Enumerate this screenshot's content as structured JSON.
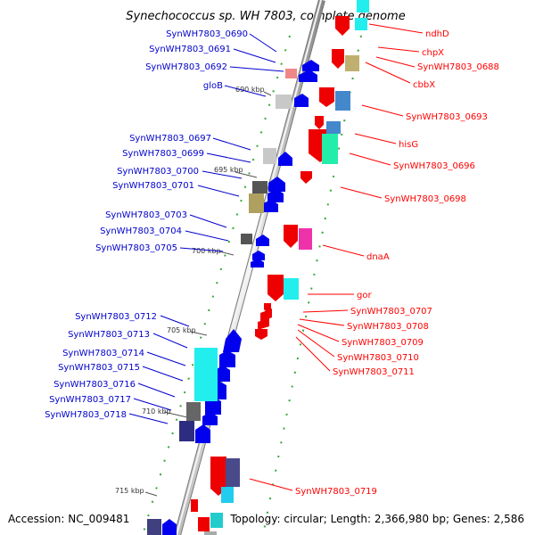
{
  "title": "Synechococcus sp. WH 7803, complete genome",
  "footer": {
    "accession": "Accession: NC_009481",
    "topology": "Topology: circular; Length: 2,366,980 bp; Genes: 2,586"
  },
  "colors": {
    "forward_label": "#ff0000",
    "reverse_label": "#0000cc",
    "backbone": "#888888",
    "reverse_gene": "#0000ee",
    "forward_gene": "#ee0000"
  },
  "ticks": [
    "690 kbp",
    "695 kbp",
    "700 kbp",
    "705 kbp",
    "710 kbp",
    "715 kbp"
  ],
  "left_labels": [
    "SynWH7803_0690",
    "SynWH7803_0691",
    "SynWH7803_0692",
    "gloB",
    "SynWH7803_0697",
    "SynWH7803_0699",
    "SynWH7803_0700",
    "SynWH7803_0701",
    "SynWH7803_0703",
    "SynWH7803_0704",
    "SynWH7803_0705",
    "SynWH7803_0712",
    "SynWH7803_0713",
    "SynWH7803_0714",
    "SynWH7803_0715",
    "SynWH7803_0716",
    "SynWH7803_0717",
    "SynWH7803_0718"
  ],
  "right_labels": [
    "ndhD",
    "chpX",
    "SynWH7803_0688",
    "cbbX",
    "SynWH7803_0693",
    "hisG",
    "SynWH7803_0696",
    "SynWH7803_0698",
    "dnaA",
    "gor",
    "SynWH7803_0707",
    "SynWH7803_0708",
    "SynWH7803_0709",
    "SynWH7803_0710",
    "SynWH7803_0711",
    "SynWH7803_0719"
  ]
}
